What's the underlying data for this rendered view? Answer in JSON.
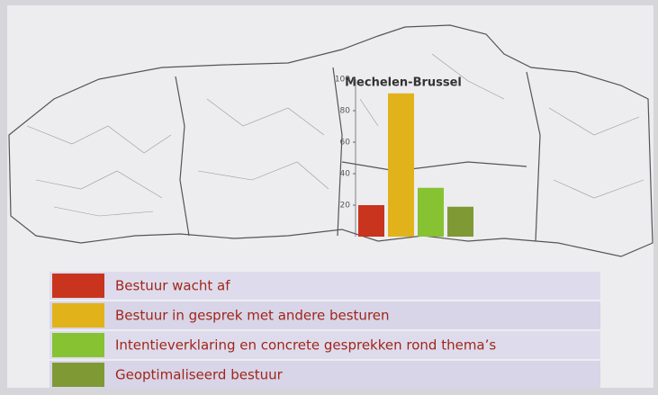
{
  "chart_data": {
    "type": "bar",
    "title": "Mechelen-Brussel",
    "categories": [
      null
    ],
    "series": [
      {
        "name": "Bestuur wacht af",
        "color": "#c8341e",
        "values": [
          20
        ]
      },
      {
        "name": "Bestuur in gesprek met andere besturen",
        "color": "#e2b21a",
        "values": [
          91
        ]
      },
      {
        "name": "Intentieverklaring en concrete gesprekken rond thema’s",
        "color": "#86c232",
        "values": [
          31
        ]
      },
      {
        "name": "Geoptimaliseerd bestuur",
        "color": "#7f9a35",
        "values": [
          19
        ]
      }
    ],
    "ylim": [
      0,
      100
    ],
    "yticks": [
      20,
      40,
      60,
      80,
      100
    ],
    "grid": false
  }
}
